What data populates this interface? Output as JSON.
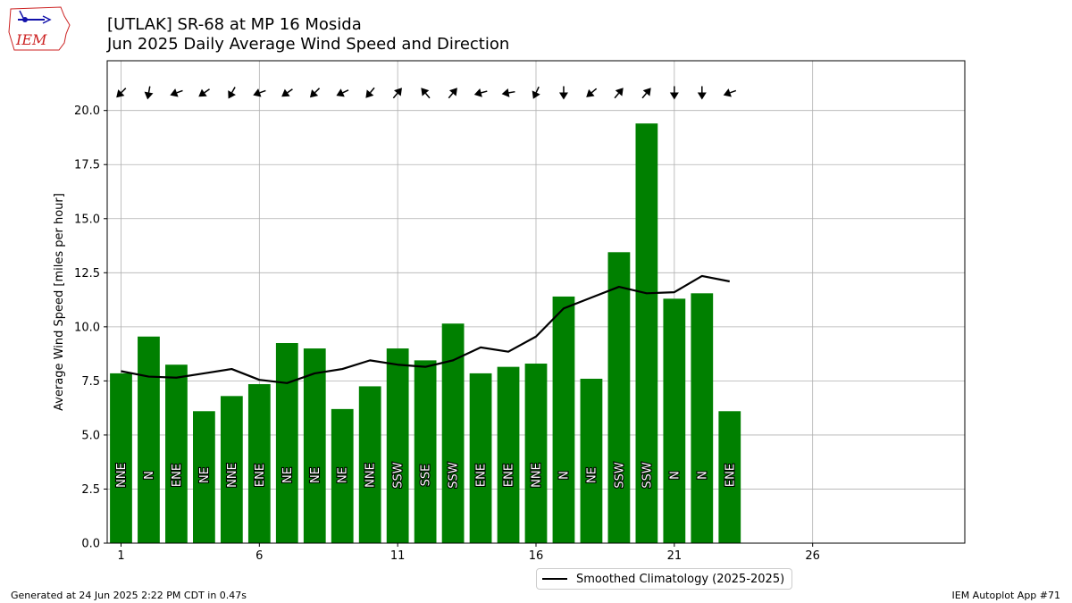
{
  "header": {
    "title": "[UTLAK] SR-68 at MP 16 Mosida",
    "subtitle": "Jun 2025 Daily Average Wind Speed and Direction",
    "logo_text": "IEM"
  },
  "footer": {
    "generated": "Generated at 24 Jun 2025 2:22 PM CDT in 0.47s",
    "app": "IEM Autoplot App #71"
  },
  "legend": {
    "label": "Smoothed Climatology (2025-2025)"
  },
  "colors": {
    "bar": "#008000",
    "line": "#000000",
    "grid": "#b0b0b0"
  },
  "chart_data": {
    "type": "bar",
    "ylabel": "Average Wind Speed [miles per hour]",
    "xlabel": "",
    "xlim": [
      0.5,
      31.5
    ],
    "ylim": [
      0,
      22.3
    ],
    "xticks": [
      1,
      6,
      11,
      16,
      21,
      26
    ],
    "yticks": [
      0.0,
      2.5,
      5.0,
      7.5,
      10.0,
      12.5,
      15.0,
      17.5,
      20.0
    ],
    "grid": true,
    "legend_position": "bottom-center",
    "days": [
      1,
      2,
      3,
      4,
      5,
      6,
      7,
      8,
      9,
      10,
      11,
      12,
      13,
      14,
      15,
      16,
      17,
      18,
      19,
      20,
      21,
      22,
      23
    ],
    "values": [
      7.85,
      9.55,
      8.25,
      6.1,
      6.8,
      7.35,
      9.25,
      9.0,
      6.2,
      7.25,
      9.0,
      8.45,
      10.15,
      7.85,
      8.15,
      8.3,
      11.4,
      7.6,
      13.45,
      19.4,
      11.3,
      11.55,
      6.1
    ],
    "directions": [
      "NNE",
      "N",
      "ENE",
      "NE",
      "NNE",
      "ENE",
      "NE",
      "NE",
      "NE",
      "NNE",
      "SSW",
      "SSE",
      "SSW",
      "ENE",
      "ENE",
      "NNE",
      "N",
      "NE",
      "SSW",
      "SSW",
      "N",
      "N",
      "ENE"
    ],
    "arrow_bearings": [
      225,
      190,
      250,
      235,
      210,
      250,
      235,
      225,
      245,
      220,
      40,
      320,
      40,
      255,
      260,
      205,
      180,
      230,
      40,
      40,
      180,
      180,
      250
    ],
    "series": [
      {
        "name": "Smoothed Climatology (2025-2025)",
        "type": "line",
        "x": [
          1,
          2,
          3,
          4,
          5,
          6,
          7,
          8,
          9,
          10,
          11,
          12,
          13,
          14,
          15,
          16,
          17,
          18,
          19,
          20,
          21,
          22,
          23
        ],
        "values": [
          7.95,
          7.7,
          7.65,
          7.85,
          8.05,
          7.55,
          7.4,
          7.85,
          8.05,
          8.45,
          8.25,
          8.15,
          8.45,
          9.05,
          8.85,
          9.55,
          10.85,
          11.35,
          11.85,
          11.55,
          11.6,
          12.35,
          12.1
        ]
      }
    ]
  }
}
